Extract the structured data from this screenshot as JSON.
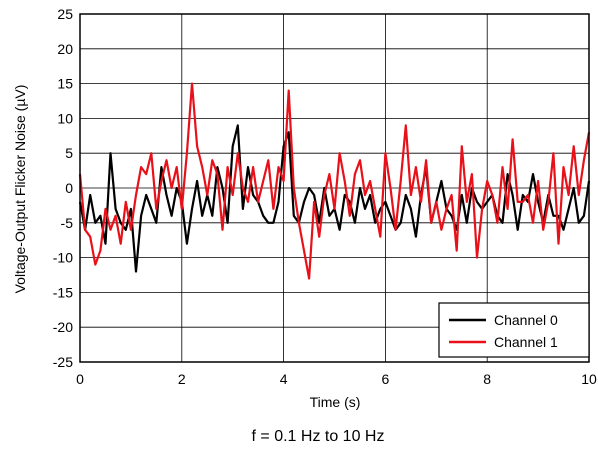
{
  "chart_data": {
    "type": "line",
    "xlabel": "Time (s)",
    "ylabel": "Voltage-Output Flicker Noise (µV)",
    "caption": "f = 0.1 Hz to 10 Hz",
    "xlim": [
      0,
      10
    ],
    "ylim": [
      -25,
      25
    ],
    "xticks": [
      0,
      2,
      4,
      6,
      8,
      10
    ],
    "yticks": [
      25,
      20,
      15,
      10,
      5,
      0,
      -5,
      -10,
      -15,
      -20,
      -25
    ],
    "grid": true,
    "legend_position": "bottom-right",
    "series": [
      {
        "name": "Channel 0",
        "color": "#000000",
        "x": [
          0,
          0.1,
          0.2,
          0.3,
          0.4,
          0.5,
          0.6,
          0.7,
          0.8,
          0.9,
          1.0,
          1.1,
          1.2,
          1.3,
          1.4,
          1.5,
          1.6,
          1.7,
          1.8,
          1.9,
          2.0,
          2.1,
          2.2,
          2.3,
          2.4,
          2.5,
          2.6,
          2.7,
          2.8,
          2.9,
          3.0,
          3.1,
          3.2,
          3.3,
          3.4,
          3.5,
          3.6,
          3.7,
          3.8,
          3.9,
          4.0,
          4.1,
          4.2,
          4.3,
          4.4,
          4.5,
          4.6,
          4.7,
          4.8,
          4.9,
          5.0,
          5.1,
          5.2,
          5.3,
          5.4,
          5.5,
          5.6,
          5.7,
          5.8,
          5.9,
          6.0,
          6.1,
          6.2,
          6.3,
          6.4,
          6.5,
          6.6,
          6.7,
          6.8,
          6.9,
          7.0,
          7.1,
          7.2,
          7.3,
          7.4,
          7.5,
          7.6,
          7.7,
          7.8,
          7.9,
          8.0,
          8.1,
          8.2,
          8.3,
          8.4,
          8.5,
          8.6,
          8.7,
          8.8,
          8.9,
          9.0,
          9.1,
          9.2,
          9.3,
          9.4,
          9.5,
          9.6,
          9.7,
          9.8,
          9.9,
          10.0
        ],
        "values": [
          -2,
          -6,
          -1,
          -5,
          -4,
          -8,
          5,
          -3,
          -5,
          -6,
          -3,
          -12,
          -4,
          -1,
          -3,
          -5,
          3,
          -1,
          -4,
          0,
          -2,
          -8,
          -3,
          1,
          -4,
          -1,
          -4,
          3,
          0,
          -5,
          6,
          9,
          -3,
          3,
          -1,
          -2,
          -4,
          -5,
          -5,
          -2,
          6,
          8,
          -4,
          -5,
          -2,
          0,
          -1,
          -5,
          0,
          -4,
          -3,
          -6,
          -1,
          -2,
          -5,
          0,
          -3,
          -1,
          -5,
          -3,
          -2,
          -4,
          -6,
          -5,
          -1,
          -3,
          -7,
          -1,
          3,
          -5,
          -2,
          1,
          -3,
          -4,
          -6,
          -1,
          -5,
          0,
          -2,
          -3,
          -2,
          -1,
          -4,
          -5,
          2,
          -1,
          -6,
          -1,
          -2,
          2,
          -2,
          -5,
          -1,
          -4,
          -4,
          -6,
          -3,
          0,
          -5,
          -4,
          1
        ]
      },
      {
        "name": "Channel 1",
        "color": "#e8111a",
        "x": [
          0,
          0.1,
          0.2,
          0.3,
          0.4,
          0.5,
          0.6,
          0.7,
          0.8,
          0.9,
          1.0,
          1.1,
          1.2,
          1.3,
          1.4,
          1.5,
          1.6,
          1.7,
          1.8,
          1.9,
          2.0,
          2.1,
          2.2,
          2.3,
          2.4,
          2.5,
          2.6,
          2.7,
          2.8,
          2.9,
          3.0,
          3.1,
          3.2,
          3.3,
          3.4,
          3.5,
          3.6,
          3.7,
          3.8,
          3.9,
          4.0,
          4.1,
          4.2,
          4.3,
          4.4,
          4.5,
          4.6,
          4.7,
          4.8,
          4.9,
          5.0,
          5.1,
          5.2,
          5.3,
          5.4,
          5.5,
          5.6,
          5.7,
          5.8,
          5.9,
          6.0,
          6.1,
          6.2,
          6.3,
          6.4,
          6.5,
          6.6,
          6.7,
          6.8,
          6.9,
          7.0,
          7.1,
          7.2,
          7.3,
          7.4,
          7.5,
          7.6,
          7.7,
          7.8,
          7.9,
          8.0,
          8.1,
          8.2,
          8.3,
          8.4,
          8.5,
          8.6,
          8.7,
          8.8,
          8.9,
          9.0,
          9.1,
          9.2,
          9.3,
          9.4,
          9.5,
          9.6,
          9.7,
          9.8,
          9.9,
          10.0
        ],
        "values": [
          2,
          -6,
          -7,
          -11,
          -9,
          -3,
          -6,
          -4,
          -8,
          -2,
          -6,
          -1,
          3,
          2,
          5,
          -3,
          1,
          4,
          0,
          3,
          -3,
          5,
          15,
          6,
          3,
          -1,
          4,
          2,
          -6,
          3,
          -1,
          5,
          0,
          -2,
          3,
          -2,
          1,
          4,
          -3,
          3,
          1,
          14,
          0,
          -5,
          -9,
          -13,
          -2,
          -7,
          -1,
          2,
          -3,
          5,
          1,
          -4,
          2,
          4,
          -1,
          1,
          -3,
          -7,
          5,
          0,
          -6,
          1,
          9,
          -1,
          3,
          -2,
          4,
          -5,
          -2,
          -6,
          -3,
          -1,
          -9,
          6,
          -2,
          2,
          -10,
          -3,
          1,
          -1,
          -5,
          3,
          -3,
          7,
          -2,
          -2,
          -1,
          -5,
          1,
          -6,
          -2,
          5,
          -8,
          3,
          -1,
          6,
          -1,
          4,
          8
        ]
      }
    ]
  }
}
